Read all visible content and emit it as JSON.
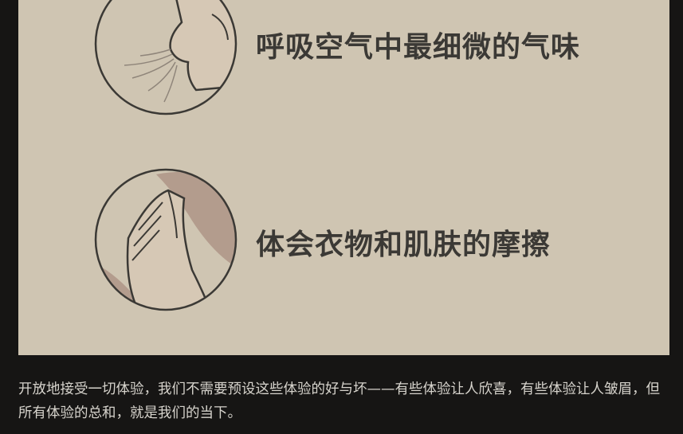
{
  "illustration": {
    "item1_label": "呼吸空气中最细微的气味",
    "item1_icon": "nose-breathing-icon",
    "item2_label": "体会衣物和肌肤的摩擦",
    "item2_icon": "hand-on-skin-icon",
    "colors": {
      "panel": "#cfc5b2",
      "ink": "#3b3935",
      "skin": "#d2c3af",
      "shadow": "#b39c8d"
    }
  },
  "caption": "开放地接受一切体验，我们不需要预设这些体验的好与坏——有些体验让人欣喜，有些体验让人皱眉，但所有体验的总和，就是我们的当下。"
}
